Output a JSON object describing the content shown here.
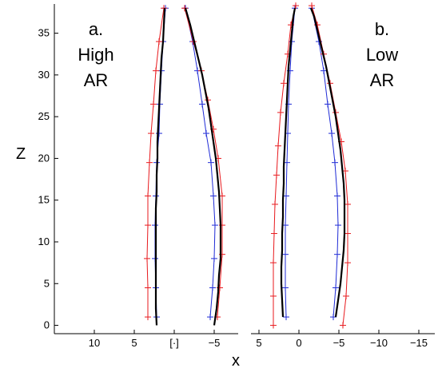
{
  "chart_data": {
    "type": "line",
    "xlabel": "x",
    "ylabel": "Z",
    "ylim": [
      -1,
      38.5
    ],
    "yticks": [
      0,
      5,
      10,
      15,
      20,
      25,
      30,
      35
    ],
    "colors": {
      "measured": "#000000",
      "red_model": "#e8191d",
      "blue_model": "#1f2bd6"
    },
    "panels": [
      {
        "id": "a",
        "label_lines": [
          "a.",
          "High",
          "AR"
        ],
        "xlim": [
          15,
          -8
        ],
        "xticks": [
          10,
          5,
          0,
          -5
        ],
        "xtick_labels": [
          "10",
          "5",
          "[·]",
          "−5"
        ],
        "series": [
          {
            "name": "",
            "role": "measured",
            "inner": [
              [
                2.2,
                0
              ],
              [
                2.3,
                2
              ],
              [
                2.3,
                4
              ],
              [
                2.3,
                6
              ],
              [
                2.3,
                8
              ],
              [
                2.3,
                10
              ],
              [
                2.3,
                12
              ],
              [
                2.3,
                14
              ],
              [
                2.2,
                16
              ],
              [
                2.2,
                18
              ],
              [
                2.1,
                20
              ],
              [
                2.1,
                22
              ],
              [
                2.0,
                24
              ],
              [
                1.9,
                26
              ],
              [
                1.8,
                28
              ],
              [
                1.7,
                30
              ],
              [
                1.6,
                32
              ],
              [
                1.4,
                34
              ],
              [
                1.3,
                36
              ],
              [
                1.2,
                38
              ]
            ],
            "outer": [
              [
                -5.0,
                0
              ],
              [
                -5.3,
                2
              ],
              [
                -5.5,
                4
              ],
              [
                -5.6,
                6
              ],
              [
                -5.8,
                8
              ],
              [
                -5.8,
                10
              ],
              [
                -5.8,
                12
              ],
              [
                -5.7,
                14
              ],
              [
                -5.6,
                16
              ],
              [
                -5.4,
                18
              ],
              [
                -5.2,
                20
              ],
              [
                -4.9,
                22
              ],
              [
                -4.6,
                24
              ],
              [
                -4.3,
                26
              ],
              [
                -3.9,
                28
              ],
              [
                -3.5,
                30
              ],
              [
                -3.0,
                32
              ],
              [
                -2.5,
                34
              ],
              [
                -2.0,
                36
              ],
              [
                -1.4,
                38
              ]
            ]
          },
          {
            "name": "",
            "role": "red_model",
            "inner": [
              [
                3.3,
                1.0
              ],
              [
                3.3,
                4.5
              ],
              [
                3.4,
                8.0
              ],
              [
                3.3,
                12.0
              ],
              [
                3.3,
                15.5
              ],
              [
                3.1,
                19.5
              ],
              [
                2.9,
                23.0
              ],
              [
                2.6,
                26.5
              ],
              [
                2.3,
                30.5
              ],
              [
                1.9,
                34.0
              ],
              [
                1.3,
                38.0
              ]
            ],
            "outer": [
              [
                -5.4,
                1.0
              ],
              [
                -5.7,
                4.5
              ],
              [
                -6.0,
                8.5
              ],
              [
                -6.0,
                12.0
              ],
              [
                -6.0,
                15.5
              ],
              [
                -5.5,
                20.0
              ],
              [
                -4.9,
                23.5
              ],
              [
                -4.2,
                27.0
              ],
              [
                -3.4,
                30.5
              ],
              [
                -2.4,
                34.0
              ],
              [
                -1.3,
                38.0
              ]
            ]
          },
          {
            "name": "",
            "role": "blue_model",
            "inner": [
              [
                2.2,
                1.0
              ],
              [
                2.3,
                4.5
              ],
              [
                2.4,
                8.0
              ],
              [
                2.4,
                12.0
              ],
              [
                2.3,
                15.5
              ],
              [
                2.2,
                19.5
              ],
              [
                1.9,
                23.0
              ],
              [
                1.8,
                26.5
              ],
              [
                1.6,
                30.5
              ],
              [
                1.4,
                34.0
              ],
              [
                1.1,
                38.0
              ]
            ],
            "outer": [
              [
                -4.5,
                1.0
              ],
              [
                -4.8,
                4.5
              ],
              [
                -5.0,
                8.0
              ],
              [
                -5.1,
                12.0
              ],
              [
                -4.9,
                15.5
              ],
              [
                -4.6,
                19.5
              ],
              [
                -4.0,
                23.0
              ],
              [
                -3.5,
                26.5
              ],
              [
                -2.9,
                30.5
              ],
              [
                -2.3,
                34.0
              ],
              [
                -1.4,
                38.0
              ]
            ]
          }
        ]
      },
      {
        "id": "b",
        "label_lines": [
          "b.",
          "Low",
          "AR"
        ],
        "xlim": [
          6,
          -17
        ],
        "xticks": [
          5,
          0,
          -5,
          -10,
          -15
        ],
        "xtick_labels": [
          "5",
          "0",
          "−5",
          "−10",
          "−15"
        ],
        "series": [
          {
            "name": "",
            "role": "measured",
            "inner": [
              [
                2.0,
                1
              ],
              [
                2.1,
                3
              ],
              [
                2.2,
                5
              ],
              [
                2.2,
                7
              ],
              [
                2.1,
                9
              ],
              [
                2.1,
                11
              ],
              [
                2.0,
                13
              ],
              [
                2.0,
                15
              ],
              [
                1.9,
                17
              ],
              [
                1.9,
                19
              ],
              [
                1.8,
                21
              ],
              [
                1.7,
                23
              ],
              [
                1.6,
                25
              ],
              [
                1.5,
                27
              ],
              [
                1.4,
                29
              ],
              [
                1.3,
                31
              ],
              [
                1.1,
                33
              ],
              [
                0.9,
                35
              ],
              [
                0.7,
                37
              ],
              [
                0.5,
                38
              ]
            ],
            "outer": [
              [
                -4.6,
                1
              ],
              [
                -4.9,
                3
              ],
              [
                -5.2,
                5
              ],
              [
                -5.4,
                7
              ],
              [
                -5.6,
                9
              ],
              [
                -5.7,
                11
              ],
              [
                -5.7,
                13
              ],
              [
                -5.7,
                15
              ],
              [
                -5.6,
                17
              ],
              [
                -5.4,
                19
              ],
              [
                -5.2,
                21
              ],
              [
                -4.9,
                23
              ],
              [
                -4.6,
                25
              ],
              [
                -4.2,
                27
              ],
              [
                -3.8,
                29
              ],
              [
                -3.4,
                31
              ],
              [
                -2.9,
                33
              ],
              [
                -2.4,
                35
              ],
              [
                -1.9,
                37
              ],
              [
                -1.5,
                38
              ]
            ]
          },
          {
            "name": "",
            "role": "red_model",
            "inner": [
              [
                3.2,
                0.0
              ],
              [
                3.2,
                3.5
              ],
              [
                3.2,
                7.5
              ],
              [
                3.1,
                11.0
              ],
              [
                3.0,
                14.5
              ],
              [
                2.8,
                18.0
              ],
              [
                2.6,
                21.5
              ],
              [
                2.3,
                25.5
              ],
              [
                1.9,
                29.0
              ],
              [
                1.4,
                32.5
              ],
              [
                1.0,
                36.0
              ],
              [
                0.4,
                38.3
              ]
            ],
            "outer": [
              [
                -5.5,
                0.0
              ],
              [
                -5.9,
                3.5
              ],
              [
                -6.1,
                7.5
              ],
              [
                -6.1,
                11.0
              ],
              [
                -6.1,
                14.5
              ],
              [
                -5.8,
                18.5
              ],
              [
                -5.3,
                22.0
              ],
              [
                -4.6,
                25.5
              ],
              [
                -3.9,
                29.0
              ],
              [
                -3.1,
                32.5
              ],
              [
                -2.3,
                36.0
              ],
              [
                -1.6,
                38.3
              ]
            ]
          },
          {
            "name": "",
            "role": "blue_model",
            "inner": [
              [
                1.6,
                1.0
              ],
              [
                1.7,
                4.5
              ],
              [
                1.7,
                8.5
              ],
              [
                1.7,
                12.0
              ],
              [
                1.6,
                15.5
              ],
              [
                1.5,
                19.5
              ],
              [
                1.4,
                23.0
              ],
              [
                1.3,
                26.5
              ],
              [
                1.1,
                30.5
              ],
              [
                0.9,
                34.0
              ],
              [
                0.5,
                38.0
              ]
            ],
            "outer": [
              [
                -4.3,
                1.0
              ],
              [
                -4.6,
                4.5
              ],
              [
                -4.8,
                8.5
              ],
              [
                -4.9,
                12.0
              ],
              [
                -4.8,
                15.5
              ],
              [
                -4.5,
                19.5
              ],
              [
                -4.1,
                23.0
              ],
              [
                -3.6,
                26.5
              ],
              [
                -3.1,
                30.5
              ],
              [
                -2.5,
                34.0
              ],
              [
                -1.6,
                38.0
              ]
            ]
          }
        ]
      }
    ]
  }
}
